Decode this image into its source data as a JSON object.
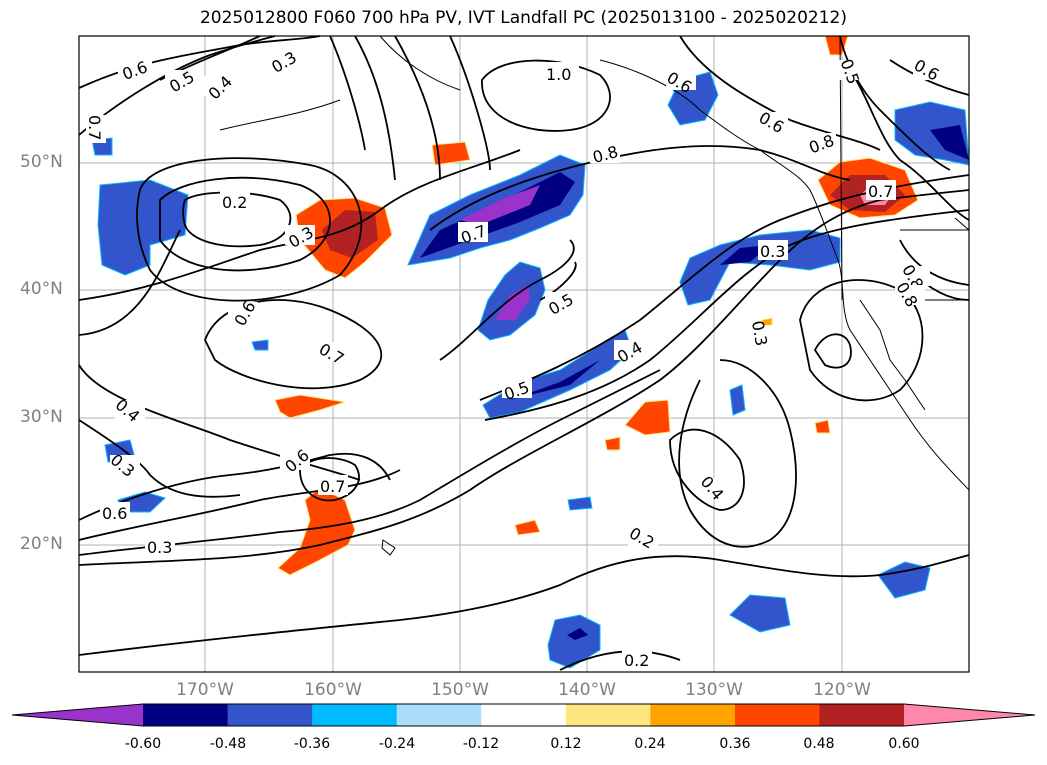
{
  "title": "2025012800 F060 700 hPa PV, IVT Landfall PC (2025013100 - 2025020212)",
  "lat_labels": [
    "50°N",
    "40°N",
    "30°N",
    "20°N"
  ],
  "lon_labels": [
    "170°W",
    "160°W",
    "150°W",
    "140°W",
    "130°W",
    "120°W"
  ],
  "contour_labels": [
    "0.6",
    "0.5",
    "0.4",
    "0.3",
    "1.0",
    "0.6",
    "0.5",
    "0.6",
    "0.6",
    "0.2",
    "0.3",
    "0.8",
    "0.8",
    "0.7",
    "0.7",
    "0.5",
    "0.3",
    "0.8",
    "0.6",
    "0.7",
    "0.5",
    "0.4",
    "0.4",
    "0.3",
    "0.6",
    "0.7",
    "0.6",
    "0.3",
    "0.4",
    "0.3",
    "0.2",
    "0.2",
    "0.8",
    "0.7"
  ],
  "colorbar": {
    "ticks": [
      "-0.60",
      "-0.48",
      "-0.36",
      "-0.24",
      "-0.12",
      "0.12",
      "0.24",
      "0.36",
      "0.48",
      "0.60"
    ],
    "colors": [
      "#9933cc",
      "#000080",
      "#3355cc",
      "#00bbff",
      "#aaddf7",
      "#ffffff",
      "#ffe680",
      "#ffa500",
      "#ff4500",
      "#b22222",
      "#ff88aa"
    ]
  }
}
